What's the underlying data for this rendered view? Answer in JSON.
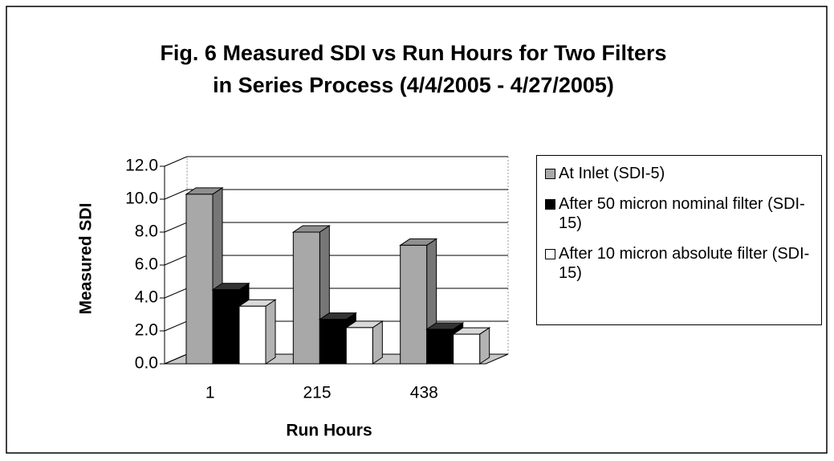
{
  "chart_data": {
    "type": "bar3d",
    "title": [
      "Fig. 6   Measured SDI vs Run  Hours for Two Filters",
      "in Series Process  (4/4/2005 - 4/27/2005)"
    ],
    "x_label": "Run Hours",
    "y_label": "Measured SDI",
    "categories": [
      "1",
      "215",
      "438"
    ],
    "series": [
      {
        "name": "At Inlet (SDI-5)",
        "color": "#a8a8a8",
        "values": [
          10.3,
          8.0,
          7.2
        ]
      },
      {
        "name": "After 50 micron nominal filter (SDI-15)",
        "color": "#000000",
        "values": [
          4.5,
          2.7,
          2.1
        ]
      },
      {
        "name": "After 10 micron absolute filter (SDI-15)",
        "color": "#ffffff",
        "values": [
          3.5,
          2.2,
          1.8
        ]
      }
    ],
    "ylim": [
      0,
      12
    ],
    "yticks": [
      {
        "value": 0,
        "label": "0.0"
      },
      {
        "value": 2,
        "label": "2.0"
      },
      {
        "value": 4,
        "label": "4.0"
      },
      {
        "value": 6,
        "label": "6.0"
      },
      {
        "value": 8,
        "label": "8.0"
      },
      {
        "value": 10,
        "label": "10.0"
      },
      {
        "value": 12,
        "label": "12.0"
      }
    ],
    "grid": true,
    "legend": "right"
  }
}
